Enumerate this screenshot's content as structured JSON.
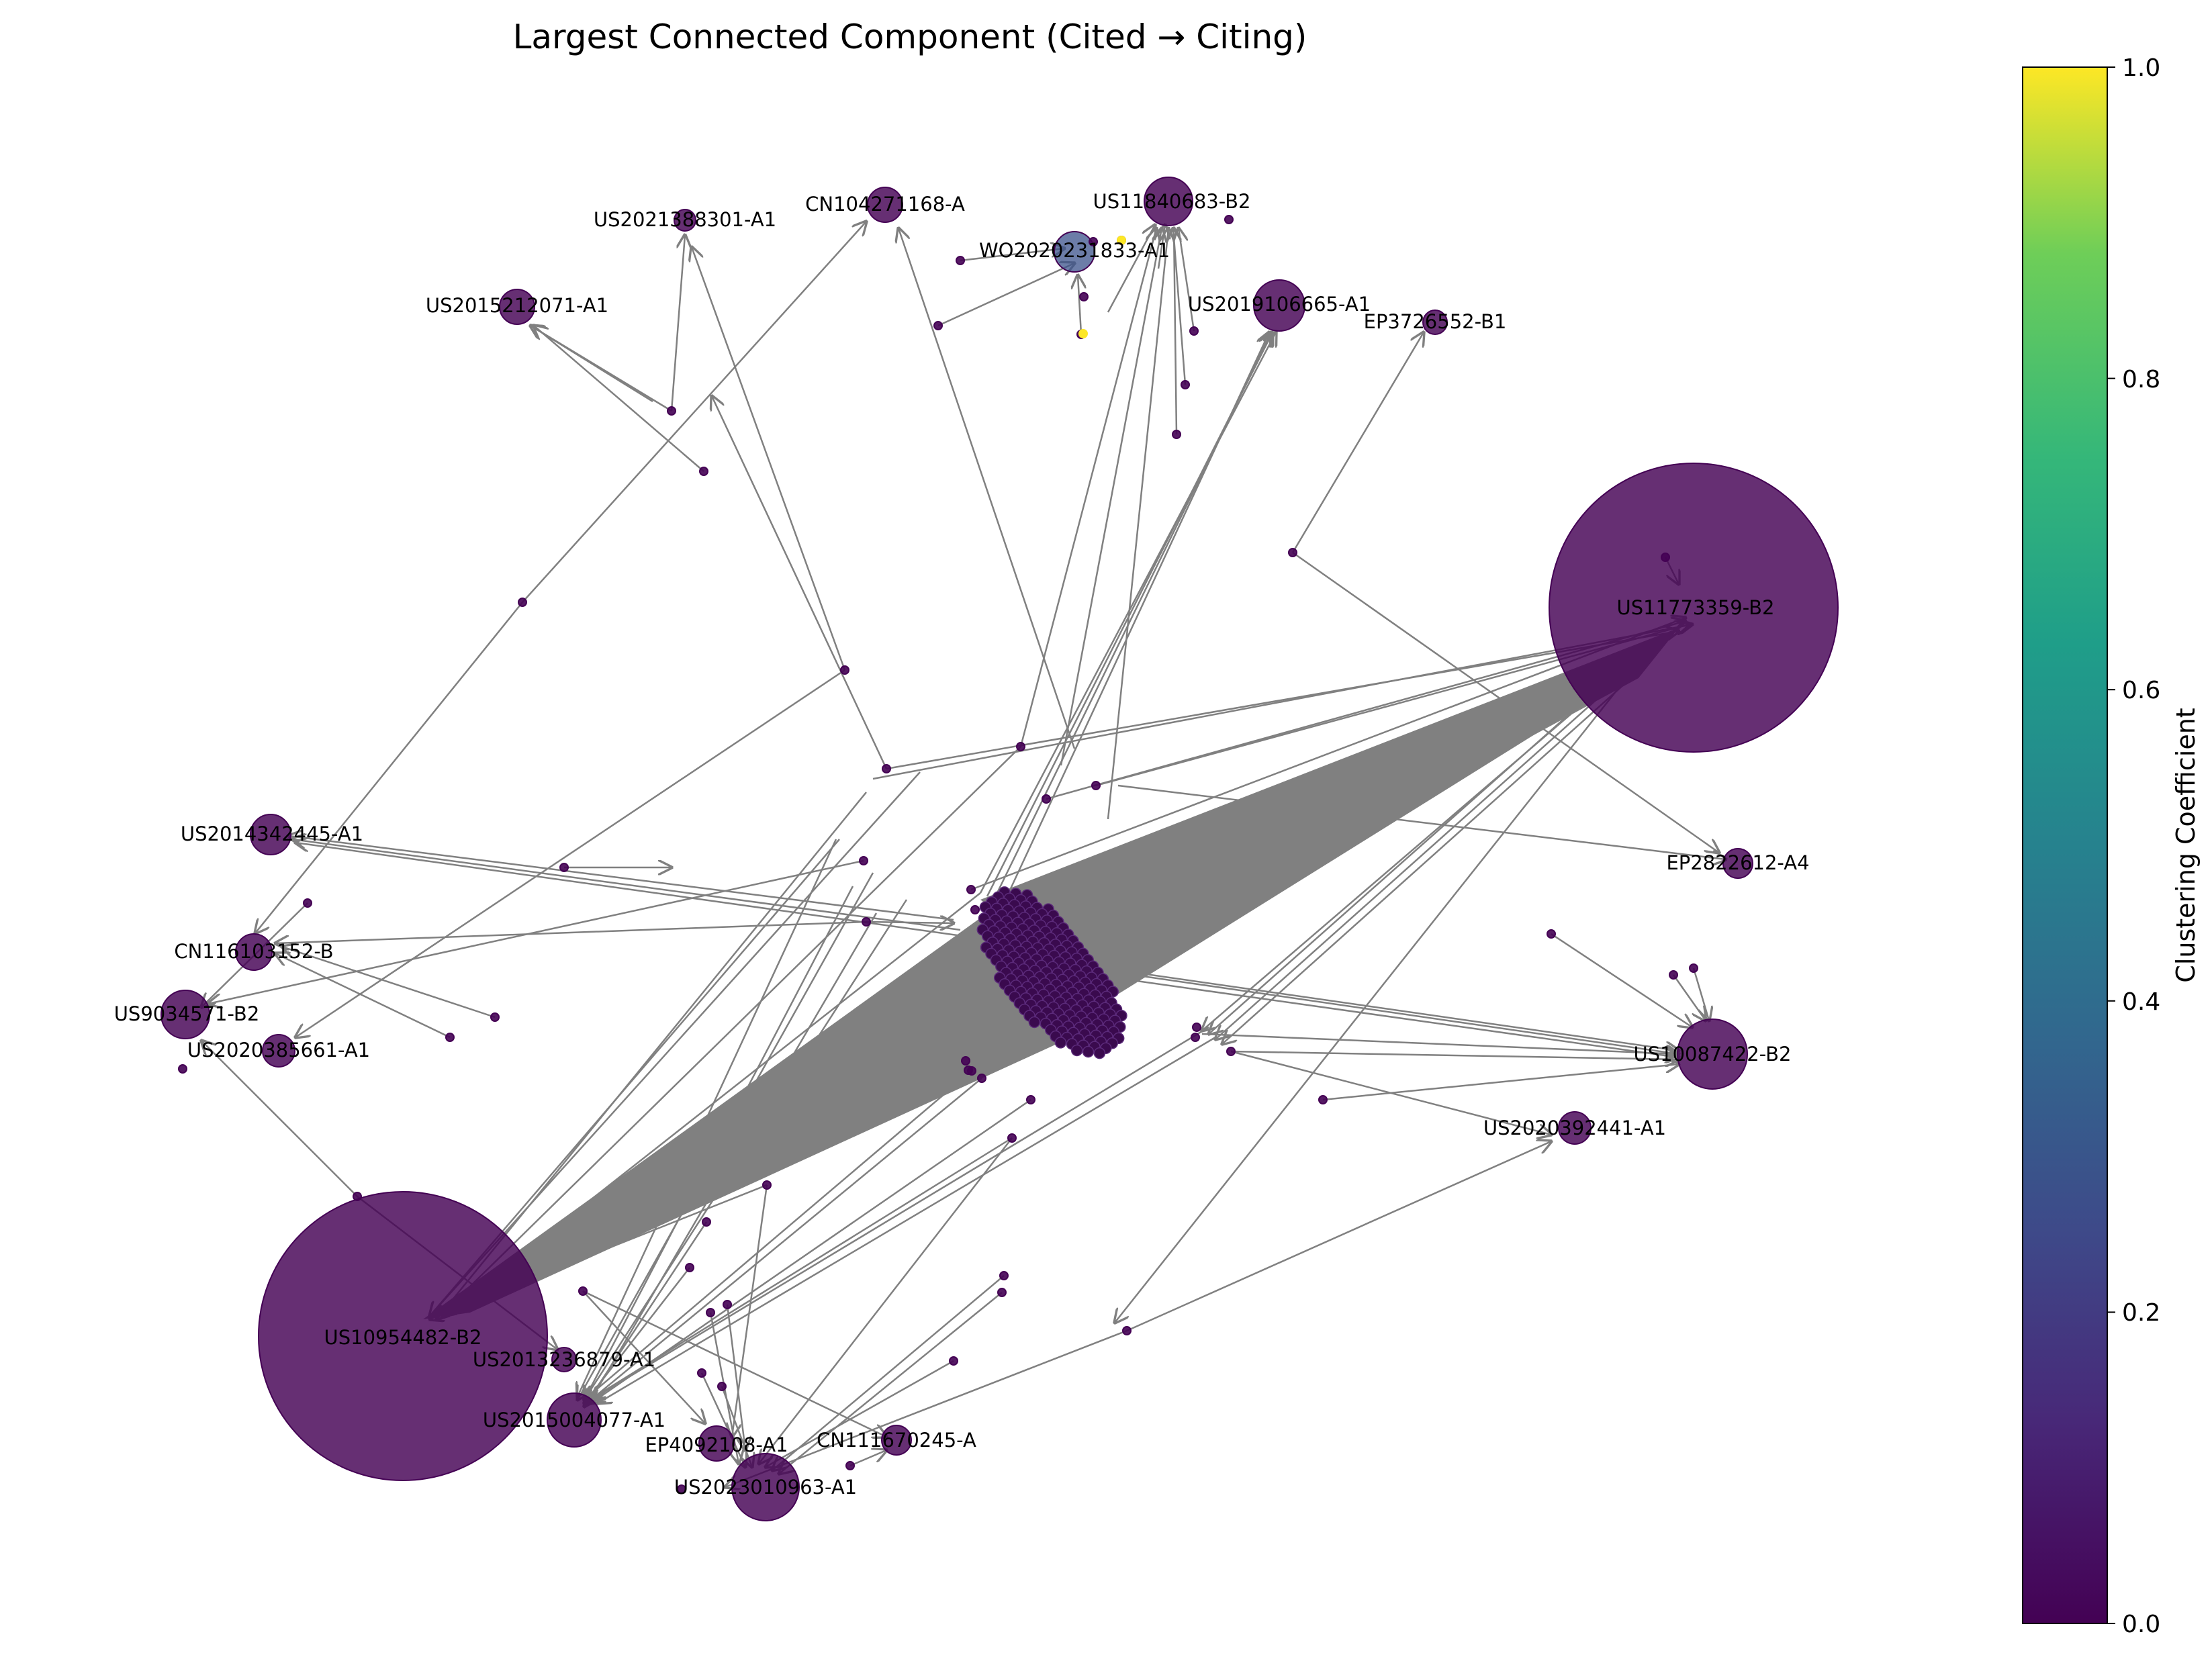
{
  "title": "Largest Connected Component (Cited → Citing)",
  "colorbar": {
    "label": "Clustering Coefficient",
    "ticks": [
      "0.0",
      "0.2",
      "0.4",
      "0.6",
      "0.8",
      "1.0"
    ],
    "colors": [
      "#440154",
      "#3b528b",
      "#21918c",
      "#5ec962",
      "#fde725"
    ]
  },
  "edge_color": "#808080",
  "labels": [
    {
      "text": "US11840683-B2"
    },
    {
      "text": "CN104271168-A"
    },
    {
      "text": "US2021388301-A1"
    },
    {
      "text": "WO2020231833-A1"
    },
    {
      "text": "US2015212071-A1"
    },
    {
      "text": "US2019106665-A1"
    },
    {
      "text": "EP3726552-B1"
    },
    {
      "text": "US11773359-B2"
    },
    {
      "text": "US2014342445-A1"
    },
    {
      "text": "EP2822612-A4"
    },
    {
      "text": "CN116103152-B"
    },
    {
      "text": "US9034571-B2"
    },
    {
      "text": "US2020385661-A1"
    },
    {
      "text": "US10087422-B2"
    },
    {
      "text": "US2020392441-A1"
    },
    {
      "text": "US10954482-B2"
    },
    {
      "text": "US2013236879-A1"
    },
    {
      "text": "US2015004077-A1"
    },
    {
      "text": "EP4092108-A1"
    },
    {
      "text": "CN111670245-A"
    },
    {
      "text": "US2023010963-A1"
    }
  ],
  "chart_data": {
    "type": "network",
    "title": "Largest Connected Component (Cited → Citing)",
    "colorbar_label": "Clustering Coefficient",
    "colorbar_range": [
      0.0,
      1.0
    ],
    "colormap": "viridis",
    "node_clustering": {
      "US11773359-B2": 0.0,
      "US10954482-B2": 0.0,
      "US11840683-B2": 0.0,
      "WO2020231833-A1": 0.2,
      "US10087422-B2": 0.0,
      "US2023010963-A1": 0.0,
      "US2015004077-A1": 0.0,
      "US2019106665-A1": 0.0
    },
    "yellow_nodes_clustering": 1.0
  }
}
